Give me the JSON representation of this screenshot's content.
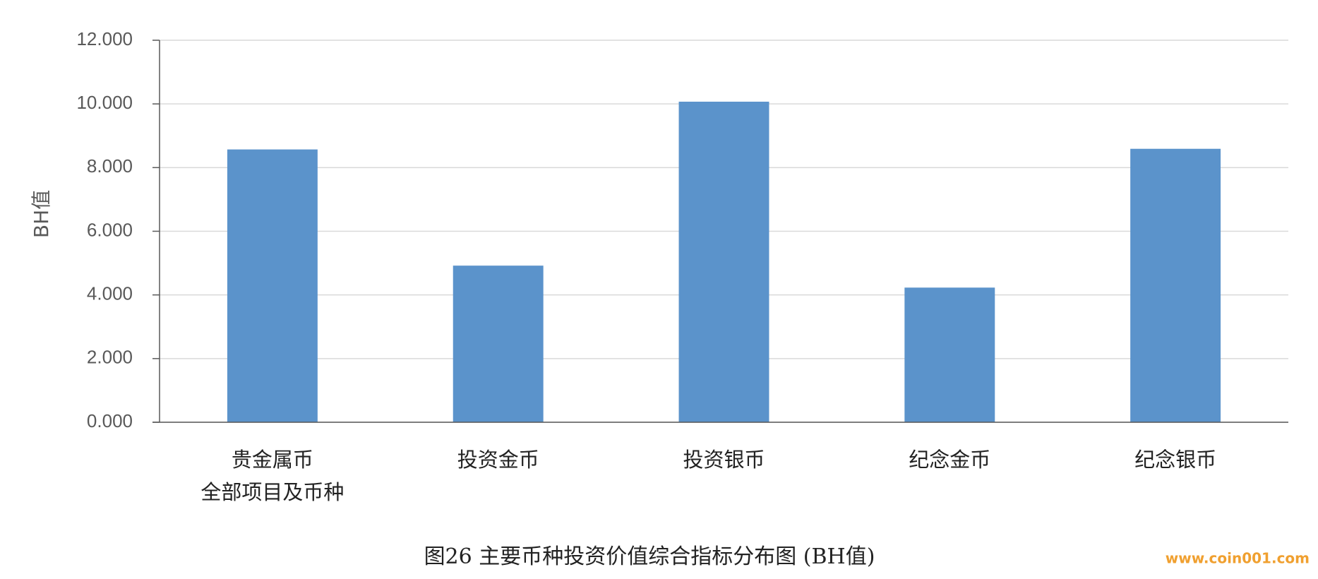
{
  "chart_data": {
    "type": "bar",
    "caption": "图26 主要币种投资价值综合指标分布图 (BH值)",
    "watermark": "www.coin001.com",
    "y_label": "BH值",
    "categories": [
      "贵金属币\n全部项目及币种",
      "投资金币",
      "投资银币",
      "纪念金币",
      "纪念银币"
    ],
    "values": [
      8.57,
      4.92,
      10.07,
      4.23,
      8.59
    ],
    "color": "#5b93cb",
    "ylim": [
      0,
      12
    ],
    "yticks": [
      {
        "value": 0,
        "label": "0.000"
      },
      {
        "value": 2,
        "label": "2.000"
      },
      {
        "value": 4,
        "label": "4.000"
      },
      {
        "value": 6,
        "label": "6.000"
      },
      {
        "value": 8,
        "label": "8.000"
      },
      {
        "value": 10,
        "label": "10.000"
      },
      {
        "value": 12,
        "label": "12.000"
      }
    ],
    "grid": true
  }
}
